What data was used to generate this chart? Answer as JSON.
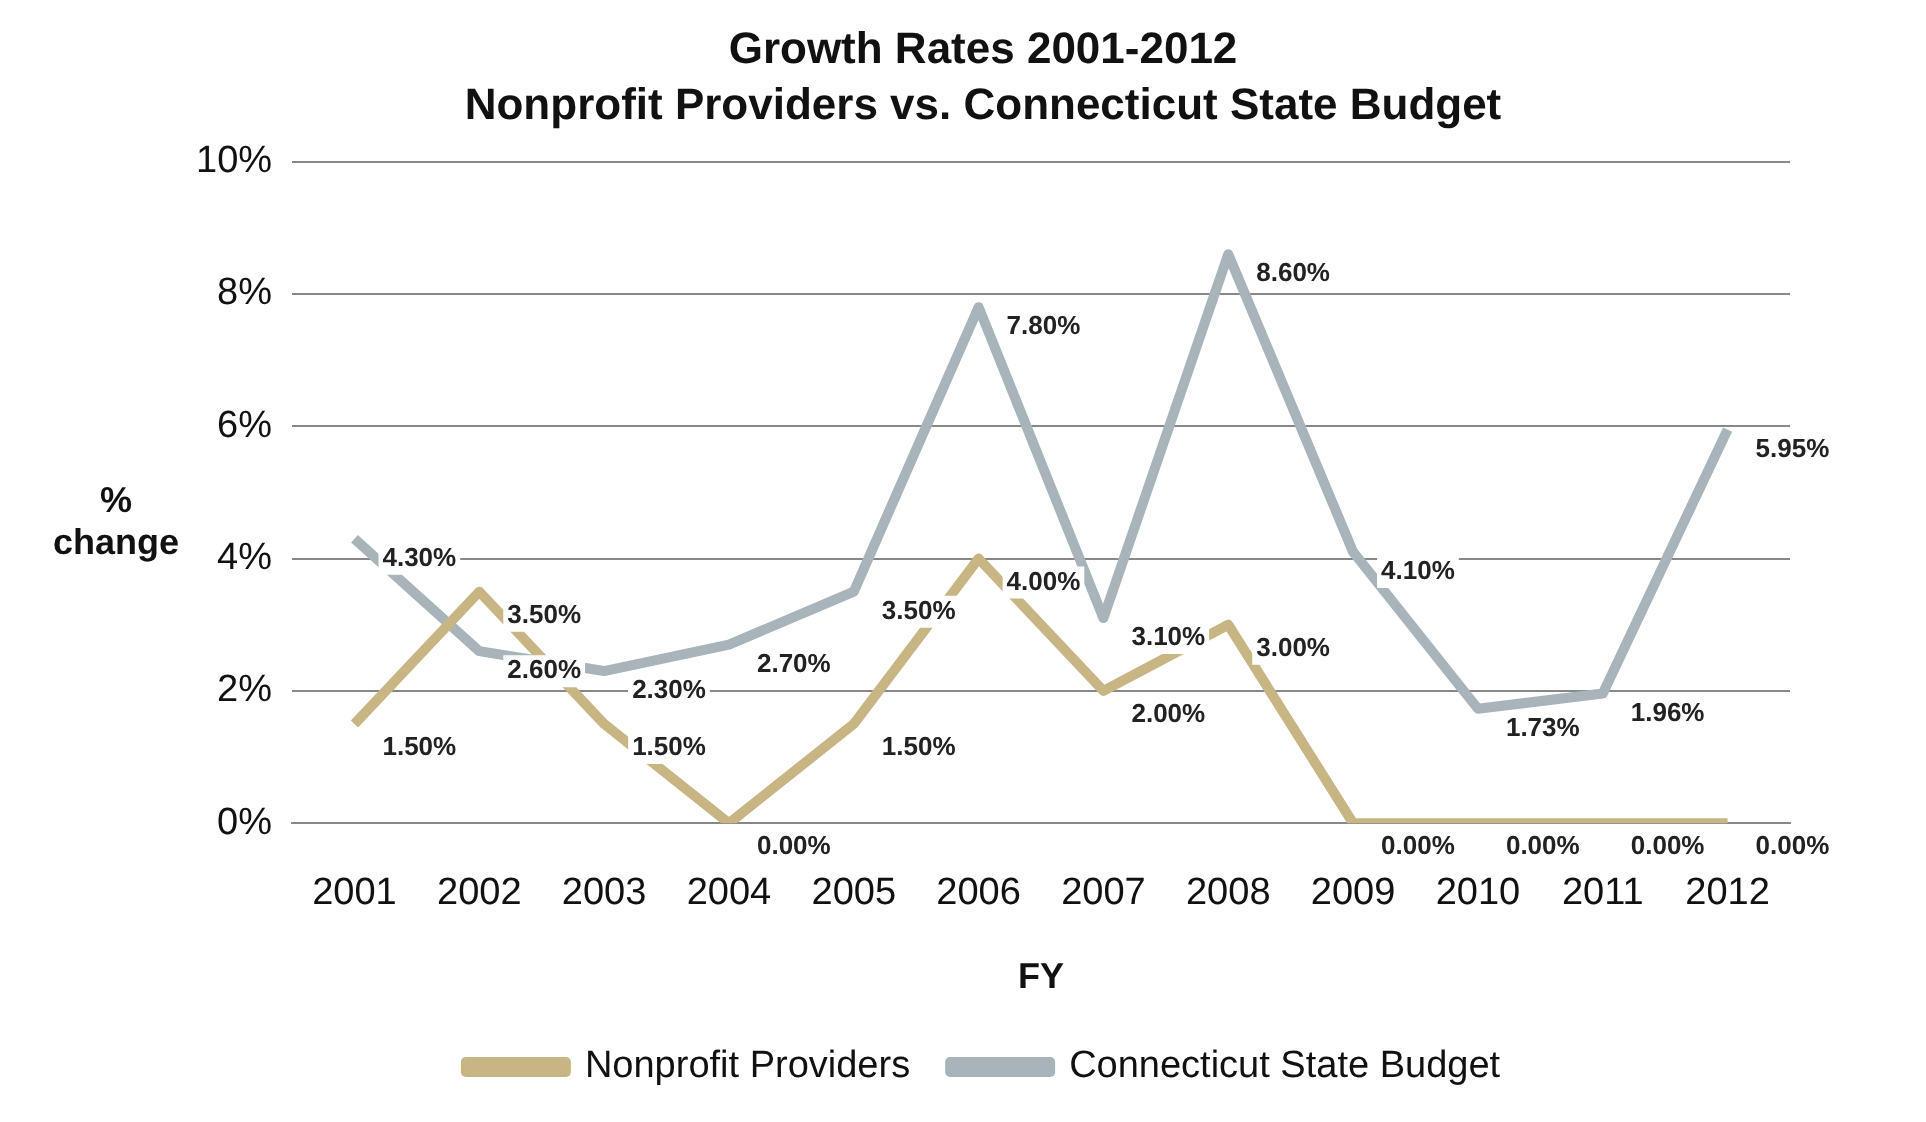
{
  "chart_data": {
    "type": "line",
    "title": "Growth Rates 2001-2012",
    "subtitle": "Nonprofit Providers vs. Connecticut State Budget",
    "xlabel": "FY",
    "ylabel": "% change",
    "categories": [
      "2001",
      "2002",
      "2003",
      "2004",
      "2005",
      "2006",
      "2007",
      "2008",
      "2009",
      "2010",
      "2011",
      "2012"
    ],
    "series": [
      {
        "name": "Nonprofit Providers",
        "color": "#c8b584",
        "values": [
          1.5,
          3.5,
          1.5,
          0,
          1.5,
          4.0,
          2.0,
          3.0,
          0,
          0,
          0,
          0
        ],
        "value_labels": [
          "1.50%",
          "3.50%",
          "1.50%",
          "0.00%",
          "1.50%",
          "4.00%",
          "2.00%",
          "3.00%",
          "0.00%",
          "0.00%",
          "0.00%",
          "0.00%"
        ]
      },
      {
        "name": "Connecticut State Budget",
        "color": "#a8b4b9",
        "values": [
          4.3,
          2.6,
          2.3,
          2.7,
          3.5,
          7.8,
          3.1,
          8.6,
          4.1,
          1.73,
          1.96,
          5.95
        ],
        "value_labels": [
          "4.30%",
          "2.60%",
          "2.30%",
          "2.70%",
          "3.50%",
          "7.80%",
          "3.10%",
          "8.60%",
          "4.10%",
          "1.73%",
          "1.96%",
          "5.95%"
        ]
      }
    ],
    "ylim": [
      0,
      10
    ],
    "yticks": [
      {
        "value": 0,
        "label": "0%"
      },
      {
        "value": 2,
        "label": "2%"
      },
      {
        "value": 4,
        "label": "4%"
      },
      {
        "value": 6,
        "label": "6%"
      },
      {
        "value": 8,
        "label": "8%"
      },
      {
        "value": 10,
        "label": "10%"
      }
    ],
    "grid": "y",
    "legend": "bottom",
    "marker": "none",
    "line_style": "solid"
  }
}
